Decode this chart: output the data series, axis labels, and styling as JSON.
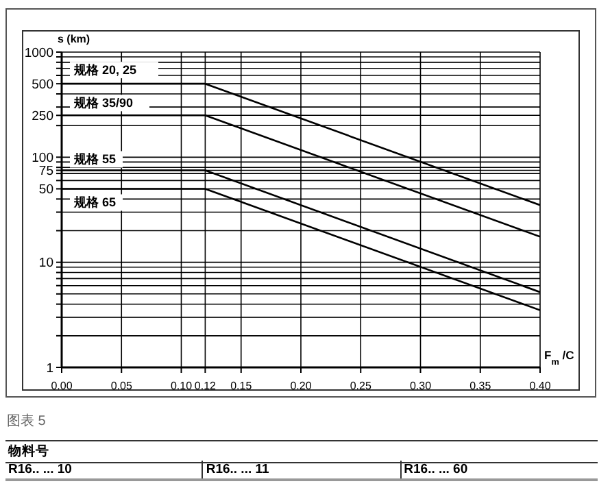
{
  "chart_data": {
    "type": "line",
    "xlabel": "F$_{m}$/C",
    "ylabel": "s (km)",
    "log": "y",
    "grid": true,
    "marker": "none",
    "line_style": "solid",
    "xlim": [
      0,
      0.4
    ],
    "ylim": [
      1,
      1000
    ],
    "xticks": [
      {
        "value": 0,
        "label": "0.00"
      },
      0.05,
      {
        "value": 0.1,
        "label": "0.10"
      },
      0.12,
      0.15,
      {
        "value": 0.2,
        "label": "0.20"
      },
      0.25,
      {
        "value": 0.3,
        "label": "0.30"
      },
      0.35,
      {
        "value": 0.4,
        "label": "0.40"
      }
    ],
    "yticks": [
      1,
      {
        "value": 2,
        "label": null
      },
      {
        "value": 3,
        "label": null
      },
      {
        "value": 4,
        "label": null
      },
      {
        "value": 5,
        "label": null
      },
      {
        "value": 6,
        "label": null
      },
      {
        "value": 7,
        "label": null
      },
      {
        "value": 8,
        "label": null
      },
      {
        "value": 9,
        "label": null
      },
      10,
      {
        "value": 20,
        "label": null
      },
      {
        "value": 30,
        "label": null
      },
      {
        "value": 40,
        "label": null
      },
      50,
      {
        "value": 60,
        "label": null
      },
      {
        "value": 70,
        "label": null
      },
      75,
      {
        "value": 80,
        "label": null
      },
      {
        "value": 90,
        "label": null
      },
      100,
      {
        "value": 200,
        "label": null
      },
      250,
      {
        "value": 300,
        "label": null
      },
      {
        "value": 400,
        "label": null
      },
      500,
      {
        "value": 600,
        "label": null
      },
      {
        "value": 700,
        "label": null
      },
      {
        "value": 800,
        "label": null
      },
      {
        "value": 900,
        "label": null
      },
      1000
    ],
    "series": [
      {
        "name": "规格 20, 25",
        "color": "#000000",
        "x": [
          0,
          0.12,
          0.4
        ],
        "values": [
          500,
          500,
          35
        ]
      },
      {
        "name": "规格 35/90",
        "color": "#000000",
        "x": [
          0,
          0.12,
          0.4
        ],
        "values": [
          250,
          250,
          17.5
        ]
      },
      {
        "name": "规格 55",
        "color": "#000000",
        "x": [
          0,
          0.12,
          0.4
        ],
        "values": [
          75,
          75,
          5.2
        ]
      },
      {
        "name": "规格 65",
        "color": "#000000",
        "x": [
          0,
          0.12,
          0.4
        ],
        "values": [
          50,
          50,
          3.5
        ]
      }
    ],
    "annotations": [
      "图表 5",
      "物料号",
      "R16.. ... 10",
      "R16.. ... 11",
      "R16.. ... 60"
    ]
  }
}
